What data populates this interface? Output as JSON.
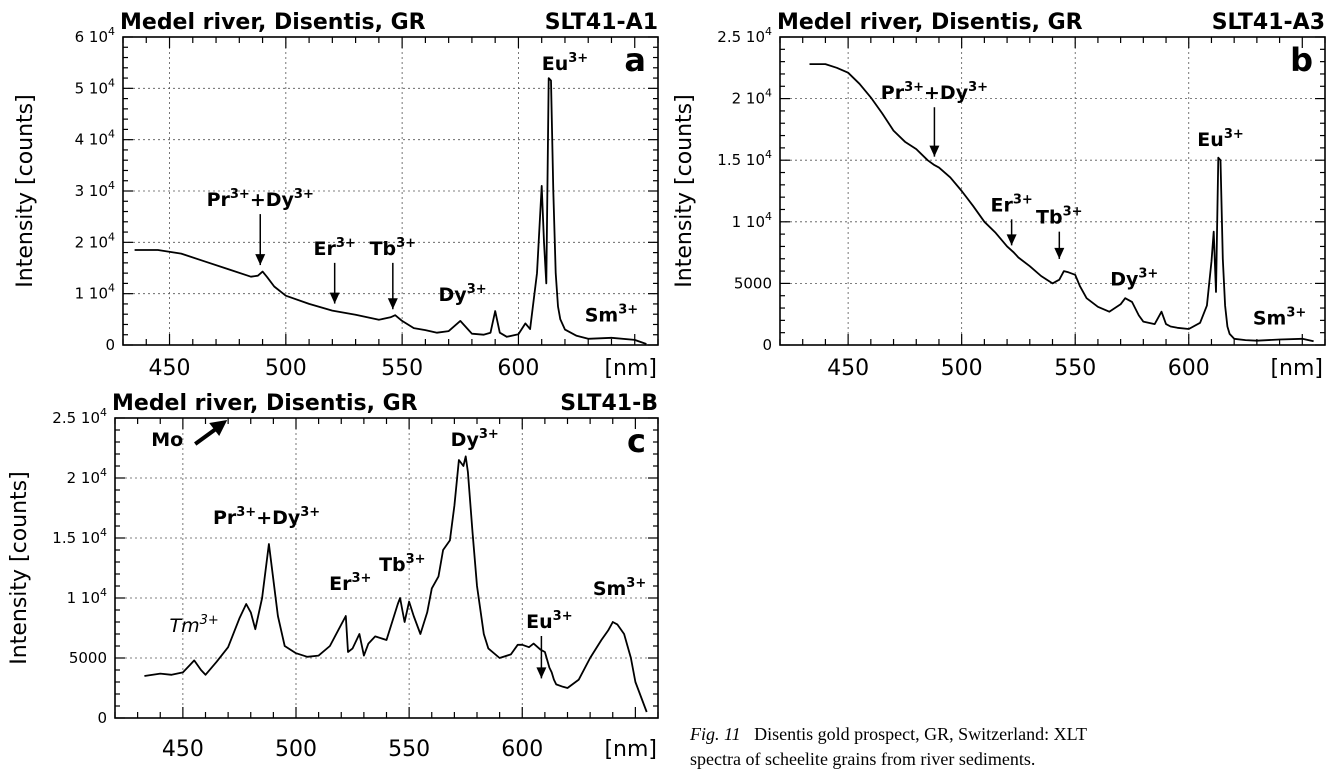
{
  "caption": {
    "fig_label": "Fig. 11",
    "text_line1": "Disentis gold prospect, GR, Switzerland: XLT",
    "text_line2": "spectra of scheelite grains from river sediments."
  },
  "chart_data": [
    {
      "id": "a",
      "type": "line",
      "title": "Medel river, Disentis, GR",
      "sample": "SLT41-A1",
      "panel_label": "a",
      "ylabel": "Intensity [counts]",
      "xlabel": "[nm]",
      "xlim": [
        430,
        660
      ],
      "ylim": [
        0,
        60000
      ],
      "xticks": [
        450,
        500,
        550,
        600
      ],
      "yticks": [
        {
          "value": 0,
          "label": "0",
          "exp": ""
        },
        {
          "value": 10000,
          "label": "1 10",
          "exp": "4"
        },
        {
          "value": 20000,
          "label": "2 10",
          "exp": "4"
        },
        {
          "value": 30000,
          "label": "3 10",
          "exp": "4"
        },
        {
          "value": 40000,
          "label": "4 10",
          "exp": "4"
        },
        {
          "value": 50000,
          "label": "5 10",
          "exp": "4"
        },
        {
          "value": 60000,
          "label": "6 10",
          "exp": "4"
        }
      ],
      "grid": true,
      "x": [
        435,
        445,
        455,
        465,
        475,
        485,
        488,
        490,
        492,
        495,
        500,
        510,
        520,
        530,
        540,
        545,
        547,
        550,
        555,
        560,
        565,
        570,
        575,
        578,
        580,
        585,
        588,
        590,
        592,
        595,
        600,
        603,
        605,
        608,
        610,
        611,
        612,
        613,
        614,
        615,
        616,
        617,
        618,
        620,
        625,
        630,
        640,
        650,
        655
      ],
      "y": [
        18500,
        18500,
        17800,
        16300,
        14800,
        13300,
        13500,
        14300,
        13200,
        11400,
        9600,
        8000,
        6700,
        5900,
        4900,
        5400,
        5800,
        4700,
        3300,
        2900,
        2400,
        2700,
        4700,
        3200,
        2200,
        2000,
        2400,
        6600,
        2400,
        1600,
        2100,
        4200,
        3100,
        14000,
        31000,
        20000,
        12000,
        52000,
        51500,
        30000,
        14000,
        7500,
        5000,
        3000,
        1800,
        1200,
        1400,
        1000,
        200
      ],
      "annotations": [
        {
          "text": "Pr",
          "sup": "3+",
          "text2": "+Dy",
          "sup2": "3+",
          "x": 489,
          "y": 14400,
          "arrow_from": 25500
        },
        {
          "text": "Er",
          "sup": "3+",
          "x": 521,
          "y": 6900,
          "arrow_from": 16000
        },
        {
          "text": "Tb",
          "sup": "3+",
          "x": 546,
          "y": 5800,
          "arrow_from": 16000
        },
        {
          "text": "Dy",
          "sup": "3+",
          "x": 576,
          "y": 7000
        },
        {
          "text": "Eu",
          "sup": "3+",
          "x": 620,
          "y": 52000
        },
        {
          "text": "Sm",
          "sup": "3+",
          "x": 640,
          "y": 3000
        }
      ]
    },
    {
      "id": "b",
      "type": "line",
      "title": "Medel river, Disentis, GR",
      "sample": "SLT41-A3",
      "panel_label": "b",
      "ylabel": "Intensity [counts]",
      "xlabel": "[nm]",
      "xlim": [
        420,
        660
      ],
      "ylim": [
        0,
        25000
      ],
      "xticks": [
        450,
        500,
        550,
        600
      ],
      "yticks": [
        {
          "value": 0,
          "label": "0",
          "exp": ""
        },
        {
          "value": 5000,
          "label": "5000",
          "exp": ""
        },
        {
          "value": 10000,
          "label": "1 10",
          "exp": "4"
        },
        {
          "value": 15000,
          "label": "1.5 10",
          "exp": "4"
        },
        {
          "value": 20000,
          "label": "2 10",
          "exp": "4"
        },
        {
          "value": 25000,
          "label": "2.5 10",
          "exp": "4"
        }
      ],
      "grid": true,
      "x": [
        433,
        440,
        445,
        450,
        455,
        460,
        465,
        470,
        475,
        480,
        485,
        488,
        490,
        495,
        500,
        505,
        510,
        515,
        520,
        523,
        525,
        530,
        535,
        540,
        543,
        545,
        547,
        550,
        552,
        555,
        560,
        565,
        570,
        572,
        575,
        578,
        580,
        585,
        588,
        590,
        592,
        595,
        600,
        605,
        608,
        610,
        611,
        612,
        613,
        614,
        615,
        616,
        617,
        618,
        620,
        625,
        630,
        640,
        650,
        655
      ],
      "y": [
        22800,
        22800,
        22500,
        22100,
        21200,
        20100,
        18800,
        17400,
        16500,
        15900,
        15000,
        14600,
        14400,
        13600,
        12500,
        11300,
        10000,
        9100,
        8000,
        7500,
        7100,
        6400,
        5600,
        5000,
        5300,
        6000,
        5900,
        5700,
        4800,
        3800,
        3100,
        2700,
        3300,
        3800,
        3500,
        2400,
        1900,
        1700,
        2700,
        1700,
        1500,
        1400,
        1300,
        1800,
        3200,
        6800,
        9200,
        4300,
        15200,
        15000,
        7000,
        3200,
        1500,
        900,
        500,
        400,
        350,
        450,
        500,
        300
      ],
      "annotations": [
        {
          "text": "Pr",
          "sup": "3+",
          "text2": "+Dy",
          "sup2": "3+",
          "x": 488,
          "y": 14800,
          "arrow_from": 19300
        },
        {
          "text": "Er",
          "sup": "3+",
          "x": 522,
          "y": 7600,
          "arrow_from": 10200
        },
        {
          "text": "Tb",
          "sup": "3+",
          "x": 543,
          "y": 6500,
          "arrow_from": 9200
        },
        {
          "text": "Dy",
          "sup": "3+",
          "x": 576,
          "y": 4200
        },
        {
          "text": "Eu",
          "sup": "3+",
          "x": 614,
          "y": 15500
        },
        {
          "text": "Sm",
          "sup": "3+",
          "x": 640,
          "y": 1000
        }
      ]
    },
    {
      "id": "c",
      "type": "line",
      "title": "Medel river, Disentis, GR",
      "sample": "SLT41-B",
      "panel_label": "c",
      "ylabel": "Intensity [counts]",
      "xlabel": "[nm]",
      "xlim": [
        420,
        660
      ],
      "ylim": [
        0,
        25000
      ],
      "xticks": [
        450,
        500,
        550,
        600
      ],
      "yticks": [
        {
          "value": 0,
          "label": "0",
          "exp": ""
        },
        {
          "value": 5000,
          "label": "5000",
          "exp": ""
        },
        {
          "value": 10000,
          "label": "1 10",
          "exp": "4"
        },
        {
          "value": 15000,
          "label": "1.5 10",
          "exp": "4"
        },
        {
          "value": 20000,
          "label": "2 10",
          "exp": "4"
        },
        {
          "value": 25000,
          "label": "2.5 10",
          "exp": "4"
        }
      ],
      "grid": true,
      "x": [
        433,
        440,
        445,
        450,
        453,
        455,
        458,
        460,
        465,
        470,
        475,
        478,
        480,
        482,
        485,
        488,
        490,
        492,
        495,
        500,
        505,
        510,
        515,
        520,
        522,
        523,
        525,
        528,
        530,
        532,
        535,
        540,
        545,
        546,
        547,
        548,
        550,
        552,
        555,
        558,
        560,
        563,
        565,
        568,
        570,
        572,
        574,
        575,
        576,
        578,
        580,
        583,
        585,
        590,
        595,
        598,
        600,
        603,
        605,
        608,
        610,
        612,
        613,
        614,
        615,
        618,
        620,
        625,
        630,
        635,
        638,
        640,
        642,
        645,
        648,
        650,
        655
      ],
      "y": [
        3500,
        3700,
        3600,
        3800,
        4400,
        4800,
        4000,
        3600,
        4700,
        5900,
        8300,
        9500,
        8800,
        7400,
        10000,
        14500,
        11500,
        8500,
        6000,
        5400,
        5100,
        5200,
        6000,
        7800,
        8500,
        5500,
        5800,
        7000,
        5200,
        6200,
        6800,
        6500,
        9500,
        10000,
        9000,
        8000,
        9700,
        8500,
        7000,
        8800,
        10800,
        11800,
        14000,
        14800,
        17700,
        21500,
        21000,
        21800,
        20500,
        15500,
        11000,
        7000,
        5800,
        5000,
        5300,
        6100,
        6100,
        5900,
        6200,
        5700,
        5500,
        4200,
        3800,
        3200,
        2800,
        2600,
        2500,
        3200,
        5000,
        6500,
        7300,
        8000,
        7800,
        7000,
        5000,
        3000,
        500
      ],
      "annotations": [
        {
          "text": "Tm",
          "sup": "3+",
          "italic": true,
          "x": 455,
          "y": 6500
        },
        {
          "text": "Pr",
          "sup": "3+",
          "text2": "+Dy",
          "sup2": "3+",
          "x": 487,
          "y": 15500
        },
        {
          "text": "Er",
          "sup": "3+",
          "x": 524,
          "y": 10000
        },
        {
          "text": "Tb",
          "sup": "3+",
          "x": 547,
          "y": 11600
        },
        {
          "text": "Dy",
          "sup": "3+",
          "x": 579,
          "y": 22000
        },
        {
          "text": "Eu",
          "sup": "3+",
          "x": 612,
          "y": 8000,
          "arrow_from": 8000,
          "arrow_to": 3300
        },
        {
          "text": "Sm",
          "sup": "3+",
          "x": 643,
          "y": 9600
        },
        {
          "text": "Mo",
          "x": 436,
          "y": 22000,
          "diag_arrow": true
        }
      ]
    }
  ]
}
